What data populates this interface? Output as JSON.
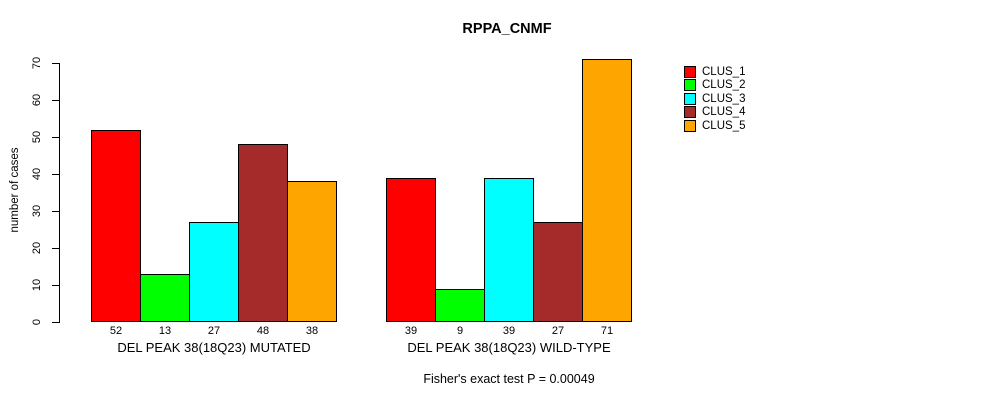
{
  "chart_data": {
    "type": "bar",
    "grouped": true,
    "title": "RPPA_CNMF",
    "ylabel": "number of cases",
    "ylim": [
      0,
      70
    ],
    "yticks": [
      0,
      10,
      20,
      30,
      40,
      50,
      60,
      70
    ],
    "grid": false,
    "legend_position": "right",
    "bar_border_color": "#000000",
    "series": [
      {
        "name": "CLUS_1",
        "color": "#ff0000"
      },
      {
        "name": "CLUS_2",
        "color": "#00ff00"
      },
      {
        "name": "CLUS_3",
        "color": "#00ffff"
      },
      {
        "name": "CLUS_4",
        "color": "#a52a2a"
      },
      {
        "name": "CLUS_5",
        "color": "#ffa500"
      }
    ],
    "groups": [
      {
        "label": "DEL PEAK 38(18Q23) MUTATED",
        "values": [
          52,
          13,
          27,
          48,
          38
        ]
      },
      {
        "label": "DEL PEAK 38(18Q23) WILD-TYPE",
        "values": [
          39,
          9,
          39,
          27,
          71
        ]
      }
    ],
    "bar_value_labels": [
      [
        52,
        13,
        27,
        48,
        38
      ],
      [
        39,
        9,
        39,
        27,
        71
      ]
    ],
    "annotation": "Fisher's exact test P = 0.00049"
  }
}
